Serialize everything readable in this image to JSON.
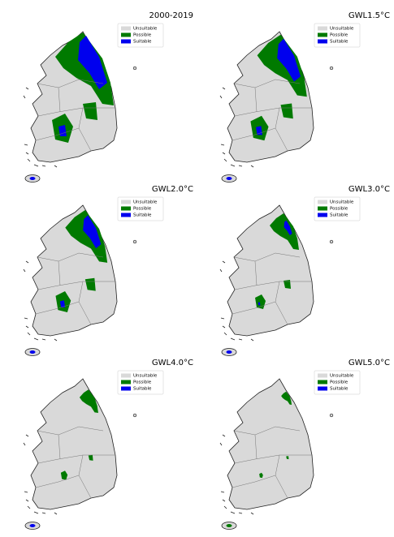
{
  "panels": [
    {
      "title": "2000-2019"
    },
    {
      "title": "GWL1.5°C"
    },
    {
      "title": "GWL2.0°C"
    },
    {
      "title": "GWL3.0°C"
    },
    {
      "title": "GWL4.0°C"
    },
    {
      "title": "GWL5.0°C"
    }
  ],
  "legend": [
    {
      "label": "Unsuitable",
      "color": "#d9d9d9"
    },
    {
      "label": "Possible",
      "color": "#007a00"
    },
    {
      "label": "Suitable",
      "color": "#0000ee"
    }
  ]
}
